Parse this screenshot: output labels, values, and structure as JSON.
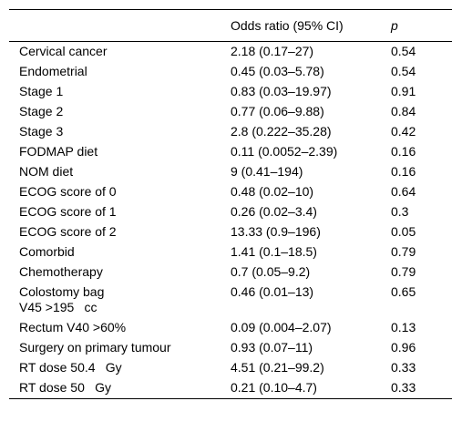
{
  "header": {
    "variable": "",
    "or": "Odds ratio (95% CI)",
    "p": "p"
  },
  "rows": [
    {
      "label": "Cervical cancer",
      "or": "2.18 (0.17–27)",
      "p": "0.54"
    },
    {
      "label": "Endometrial",
      "or": "0.45 (0.03–5.78)",
      "p": "0.54"
    },
    {
      "label": "Stage 1",
      "or": "0.83 (0.03–19.97)",
      "p": "0.91"
    },
    {
      "label": "Stage 2",
      "or": "0.77 (0.06–9.88)",
      "p": "0.84"
    },
    {
      "label": "Stage 3",
      "or": "2.8 (0.222–35.28)",
      "p": "0.42"
    },
    {
      "label": "FODMAP diet",
      "or": "0.11 (0.0052–2.39)",
      "p": "0.16"
    },
    {
      "label": "NOM diet",
      "or": "9 (0.41–194)",
      "p": "0.16"
    },
    {
      "label": "ECOG score of 0",
      "or": "0.48 (0.02–10)",
      "p": "0.64"
    },
    {
      "label": "ECOG score of 1",
      "or": "0.26 (0.02–3.4)",
      "p": "0.3"
    },
    {
      "label": "ECOG score of 2",
      "or": "13.33 (0.9–196)",
      "p": "0.05"
    },
    {
      "label": "Comorbid",
      "or": "1.41 (0.1–18.5)",
      "p": "0.79"
    },
    {
      "label": "Chemotherapy",
      "or": "0.7 (0.05–9.2)",
      "p": "0.79"
    },
    {
      "label": "Colostomy bag",
      "sublabel": "V45 >195    cc",
      "or": "0.46 (0.01–13)",
      "p": "0.65"
    },
    {
      "label": "Rectum V40 >60%",
      "or": "0.09 (0.004–2.07)",
      "p": "0.13"
    },
    {
      "label": "Surgery on primary tumour",
      "or": "0.93 (0.07–11)",
      "p": "0.96"
    },
    {
      "label": "RT dose 50.4    Gy",
      "or": "4.51 (0.21–99.2)",
      "p": "0.33"
    },
    {
      "label": "RT dose 50    Gy",
      "or": "0.21 (0.10–4.7)",
      "p": "0.33"
    }
  ]
}
